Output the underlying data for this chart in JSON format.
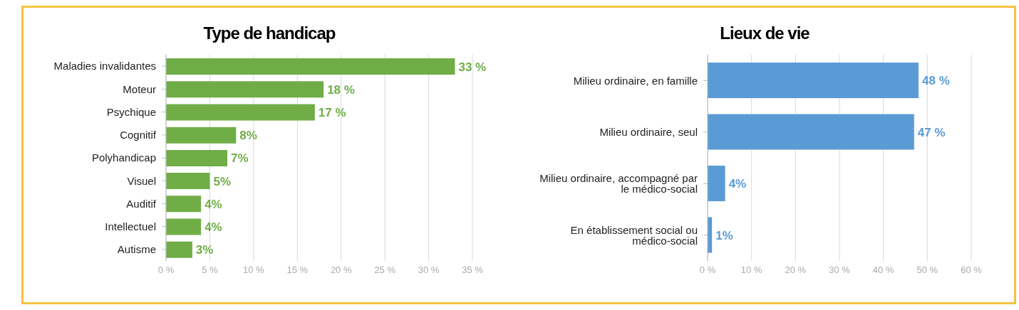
{
  "chart_data": [
    {
      "type": "bar",
      "orientation": "horizontal",
      "title": "Type de handicap",
      "categories": [
        "Maladies invalidantes",
        "Moteur",
        "Psychique",
        "Cognitif",
        "Polyhandicap",
        "Visuel",
        "Auditif",
        "Intellectuel",
        "Autisme"
      ],
      "values": [
        33,
        18,
        17,
        8,
        7,
        5,
        4,
        4,
        3
      ],
      "value_labels": [
        "33 %",
        "18 %",
        "17 %",
        "8%",
        "7%",
        "5%",
        "4%",
        "4%",
        "3%"
      ],
      "color": "#70ad47",
      "xlim": [
        0,
        35
      ],
      "xticks": [
        {
          "value": 0,
          "label": "0 %"
        },
        {
          "value": 5,
          "label": "5 %"
        },
        {
          "value": 10,
          "label": "10 %"
        },
        {
          "value": 15,
          "label": "15 %"
        },
        {
          "value": 20,
          "label": "20 %"
        },
        {
          "value": 25,
          "label": "25 %"
        },
        {
          "value": 30,
          "label": "30 %"
        },
        {
          "value": 35,
          "label": "35 %"
        }
      ],
      "grid": "x",
      "legend": false
    },
    {
      "type": "bar",
      "orientation": "horizontal",
      "title": "Lieux de vie",
      "categories": [
        "Milieu ordinaire, en famille",
        "Milieu ordinaire, seul",
        "Milieu ordinaire, accompagné par le médico-social",
        "En établissement social ou médico-social"
      ],
      "values": [
        48,
        47,
        4,
        1
      ],
      "value_labels": [
        "48 %",
        "47 %",
        "4%",
        "1%"
      ],
      "color": "#5b9bd5",
      "xlim": [
        0,
        60
      ],
      "xticks": [
        {
          "value": 0,
          "label": "0 %"
        },
        {
          "value": 10,
          "label": "10 %"
        },
        {
          "value": 20,
          "label": "20 %"
        },
        {
          "value": 30,
          "label": "30 %"
        },
        {
          "value": 40,
          "label": "40 %"
        },
        {
          "value": 50,
          "label": "50 %"
        },
        {
          "value": 60,
          "label": "60 %"
        }
      ],
      "grid": "x",
      "legend": false
    }
  ]
}
